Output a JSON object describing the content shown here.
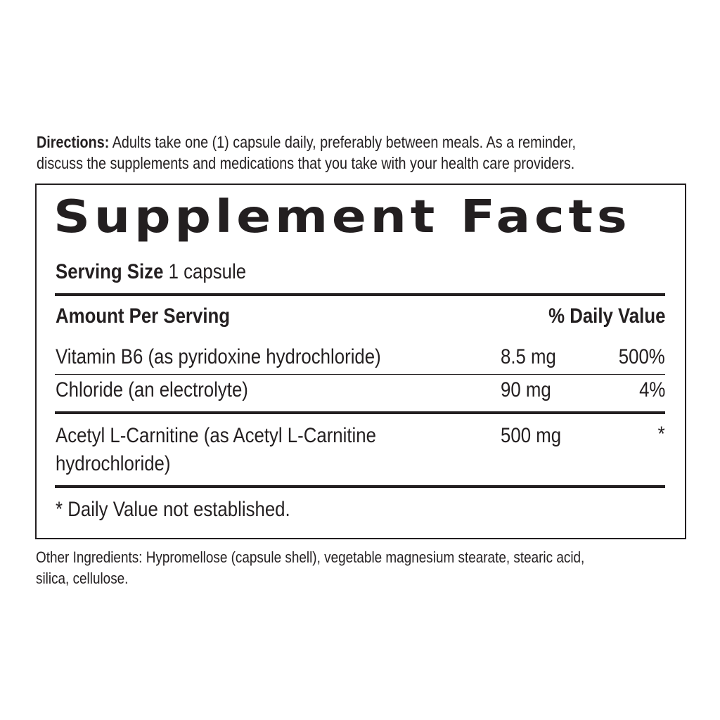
{
  "directions": {
    "label": "Directions:",
    "line1": "Adults take one (1) capsule daily, preferably between meals. As a reminder,",
    "line2": "discuss the supplements and medications that you take with your health care providers."
  },
  "facts": {
    "title": "Supplement Facts",
    "serving_size_label": "Serving Size",
    "serving_size_value": "1 capsule",
    "header_amount": "Amount Per Serving",
    "header_dv": "% Daily Value",
    "rows": [
      {
        "name": "Vitamin B6 (as pyridoxine hydrochloride)",
        "amount": "8.5 mg",
        "dv": "500%"
      },
      {
        "name": "Chloride (an electrolyte)",
        "amount": "90 mg",
        "dv": "4%"
      },
      {
        "name": "Acetyl L-Carnitine (as Acetyl L-Carnitine",
        "name_line2": "hydrochloride)",
        "amount": "500 mg",
        "dv": "*"
      }
    ],
    "footnote": "* Daily Value not established."
  },
  "other_ingredients": {
    "line1": "Other Ingredients: Hypromellose (capsule shell), vegetable magnesium stearate,  stearic acid,",
    "line2": "silica, cellulose."
  }
}
